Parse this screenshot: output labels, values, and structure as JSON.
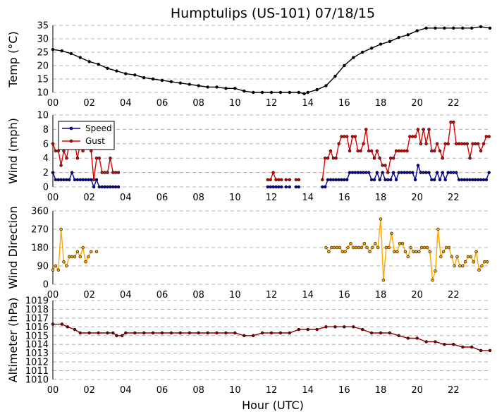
{
  "title": "Humptulips (US-101) 07/18/15",
  "xlabel": "Hour (UTC)",
  "x_ticks": [
    "00",
    "02",
    "04",
    "06",
    "08",
    "10",
    "12",
    "14",
    "16",
    "18",
    "20",
    "22"
  ],
  "colors": {
    "temp": "#000000",
    "speed": "#0000aa",
    "gust": "#dd0000",
    "direction": "#ffa500",
    "altimeter": "#8b0000",
    "marker": "#000000"
  },
  "chart_data": [
    {
      "type": "line",
      "name": "temperature",
      "ylabel": "Temp (°C)",
      "xlim": [
        0,
        24
      ],
      "ylim": [
        10,
        35
      ],
      "yticks": [
        10,
        15,
        20,
        25,
        30,
        35
      ],
      "series": [
        {
          "x": [
            0,
            0.5,
            1,
            1.5,
            2,
            2.5,
            3,
            3.5,
            4,
            4.5,
            5,
            5.5,
            6,
            6.5,
            7,
            7.5,
            8,
            8.5,
            9,
            9.5,
            10,
            10.5,
            11,
            11.5,
            12,
            12.5,
            13,
            13.5,
            13.8,
            14,
            14.5,
            15,
            15.5,
            16,
            16.5,
            17,
            17.5,
            18,
            18.5,
            19,
            19.5,
            20,
            20.5,
            21,
            21.5,
            22,
            22.5,
            23,
            23.5,
            24
          ],
          "y": [
            26,
            25.5,
            24.5,
            23,
            21.5,
            20.5,
            19,
            18,
            17,
            16.5,
            15.5,
            15,
            14.5,
            14,
            13.5,
            13,
            12.5,
            12,
            12,
            11.5,
            11.5,
            10.5,
            10,
            10,
            10,
            10,
            10,
            10,
            9.5,
            10,
            11,
            12.5,
            16,
            20,
            23,
            25,
            26.5,
            28,
            29,
            30.5,
            31.5,
            33,
            34,
            34,
            34,
            34,
            34,
            34,
            34.5,
            34
          ]
        }
      ]
    },
    {
      "type": "line",
      "name": "wind",
      "ylabel": "Wind (mph)",
      "xlim": [
        0,
        24
      ],
      "ylim": [
        0,
        10
      ],
      "yticks": [
        0,
        2,
        4,
        6,
        8,
        10
      ],
      "legend": "top-left",
      "series": [
        {
          "name": "Speed",
          "segments": [
            {
              "x": [
                0,
                0.15,
                0.3,
                0.45,
                0.6,
                0.75,
                0.9,
                1.05,
                1.2,
                1.35,
                1.5,
                1.65,
                1.8,
                1.95,
                2.1,
                2.25,
                2.4,
                2.55,
                2.7,
                2.85,
                3.0,
                3.15,
                3.3,
                3.45,
                3.6
              ],
              "y": [
                2,
                1,
                1,
                1,
                1,
                1,
                1,
                2,
                1,
                1,
                1,
                1,
                1,
                1,
                1,
                0,
                1,
                0,
                0,
                0,
                0,
                0,
                0,
                0,
                0
              ]
            },
            {
              "x": [
                11.8,
                11.95,
                12.1,
                12.25,
                12.4,
                12.55
              ],
              "y": [
                0,
                0,
                0,
                0,
                0,
                0
              ]
            },
            {
              "x": [
                12.8,
                13.0
              ],
              "y": [
                0,
                0
              ]
            },
            {
              "x": [
                13.35,
                13.5
              ],
              "y": [
                0,
                0
              ]
            },
            {
              "x": [
                14.8,
                14.95,
                15.1,
                15.25,
                15.4,
                15.55,
                15.7,
                15.85,
                16.0,
                16.15,
                16.3,
                16.45,
                16.6,
                16.75,
                16.9,
                17.05,
                17.2,
                17.35,
                17.5,
                17.65,
                17.8,
                17.95,
                18.1,
                18.25,
                18.4,
                18.55,
                18.7,
                18.85,
                19.0,
                19.15,
                19.3,
                19.45,
                19.6,
                19.75,
                19.9,
                20.05,
                20.2,
                20.35,
                20.5,
                20.65,
                20.8,
                20.95,
                21.1,
                21.25,
                21.4,
                21.55,
                21.7,
                21.85,
                22.0,
                22.15,
                22.3,
                22.45,
                22.6,
                22.75,
                22.9,
                23.05,
                23.2,
                23.35,
                23.5,
                23.65,
                23.8,
                23.95
              ],
              "y": [
                0,
                0,
                1,
                1,
                1,
                1,
                1,
                1,
                1,
                1,
                2,
                2,
                2,
                2,
                2,
                2,
                2,
                2,
                1,
                1,
                2,
                1,
                2,
                1,
                1,
                1,
                2,
                1,
                2,
                2,
                2,
                2,
                2,
                2,
                1,
                3,
                2,
                2,
                2,
                2,
                1,
                1,
                2,
                1,
                2,
                1,
                2,
                2,
                2,
                2,
                1,
                1,
                1,
                1,
                1,
                1,
                1,
                1,
                1,
                1,
                1,
                2
              ]
            }
          ]
        },
        {
          "name": "Gust",
          "segments": [
            {
              "x": [
                0,
                0.15,
                0.3,
                0.45,
                0.6,
                0.75,
                0.9,
                1.05,
                1.2,
                1.35,
                1.5,
                1.65,
                1.8,
                1.95,
                2.1,
                2.25,
                2.4,
                2.55,
                2.7,
                2.85,
                3.0,
                3.15,
                3.3,
                3.45,
                3.6
              ],
              "y": [
                6,
                5,
                5,
                3,
                5,
                4,
                6,
                6,
                6,
                4,
                6,
                5,
                6,
                6,
                5,
                1,
                4,
                4,
                2,
                2,
                2,
                4,
                2,
                2,
                2
              ]
            },
            {
              "x": [
                11.8,
                11.95,
                12.1,
                12.25,
                12.4,
                12.55
              ],
              "y": [
                1,
                1,
                2,
                1,
                1,
                1
              ]
            },
            {
              "x": [
                12.8,
                13.0
              ],
              "y": [
                1,
                1
              ]
            },
            {
              "x": [
                13.35,
                13.5
              ],
              "y": [
                1,
                1
              ]
            },
            {
              "x": [
                14.8,
                14.95,
                15.1,
                15.25,
                15.4,
                15.55,
                15.7,
                15.85,
                16.0,
                16.15,
                16.3,
                16.45,
                16.6,
                16.75,
                16.9,
                17.05,
                17.2,
                17.35,
                17.5,
                17.65,
                17.8,
                17.95,
                18.1,
                18.25,
                18.4,
                18.55,
                18.7,
                18.85,
                19.0,
                19.15,
                19.3,
                19.45,
                19.6,
                19.75,
                19.9,
                20.05,
                20.2,
                20.35,
                20.5,
                20.65,
                20.8,
                20.95,
                21.1,
                21.25,
                21.4,
                21.55,
                21.7,
                21.85,
                22.0,
                22.15,
                22.3,
                22.45,
                22.6,
                22.75,
                22.9,
                23.05,
                23.2,
                23.35,
                23.5,
                23.65,
                23.8,
                23.95
              ],
              "y": [
                1,
                4,
                4,
                5,
                4,
                4,
                6,
                7,
                7,
                7,
                5,
                7,
                7,
                5,
                5,
                6,
                8,
                5,
                5,
                4,
                5,
                4,
                3,
                3,
                2,
                4,
                4,
                5,
                5,
                5,
                5,
                5,
                7,
                7,
                7,
                8,
                6,
                8,
                6,
                8,
                5,
                5,
                6,
                5,
                4,
                6,
                6,
                9,
                9,
                6,
                6,
                6,
                6,
                6,
                4,
                6,
                6,
                6,
                5,
                6,
                7,
                7
              ]
            }
          ]
        }
      ]
    },
    {
      "type": "line",
      "name": "wind_direction",
      "ylabel": "Wind Direction",
      "xlim": [
        0,
        24
      ],
      "ylim": [
        0,
        360
      ],
      "yticks": [
        0,
        90,
        180,
        270,
        360
      ],
      "series": [
        {
          "segments": [
            {
              "x": [
                0,
                0.15,
                0.3,
                0.45,
                0.6,
                0.75,
                0.9,
                1.05,
                1.2,
                1.35,
                1.5,
                1.65,
                1.8,
                1.95,
                2.1
              ],
              "y": [
                70,
                90,
                70,
                270,
                110,
                90,
                135,
                135,
                135,
                160,
                135,
                180,
                110,
                135,
                160
              ]
            },
            {
              "x": [
                2.4
              ],
              "y": [
                160
              ]
            },
            {
              "x": [
                15.0,
                15.15,
                15.3,
                15.45,
                15.6,
                15.75,
                15.9,
                16.05,
                16.2,
                16.35,
                16.5,
                16.65,
                16.8,
                16.95,
                17.1,
                17.25,
                17.4,
                17.55,
                17.7,
                17.85,
                18.0,
                18.15,
                18.3,
                18.45,
                18.6,
                18.75,
                18.9,
                19.05,
                19.2,
                19.35,
                19.5,
                19.65,
                19.8,
                19.95,
                20.1,
                20.25,
                20.4,
                20.55,
                20.7,
                20.85,
                21.0,
                21.15,
                21.3,
                21.45,
                21.6,
                21.75,
                21.9,
                22.05,
                22.2,
                22.35,
                22.5,
                22.65,
                22.8,
                22.95,
                23.1,
                23.25,
                23.4,
                23.55,
                23.7,
                23.85
              ],
              "y": [
                180,
                160,
                180,
                180,
                180,
                180,
                160,
                160,
                180,
                200,
                180,
                180,
                180,
                180,
                200,
                180,
                160,
                180,
                200,
                180,
                320,
                20,
                180,
                180,
                250,
                160,
                160,
                200,
                200,
                160,
                135,
                180,
                160,
                160,
                160,
                180,
                180,
                180,
                160,
                20,
                65,
                270,
                135,
                160,
                180,
                180,
                135,
                90,
                135,
                90,
                90,
                110,
                135,
                135,
                110,
                160,
                70,
                90,
                110,
                110
              ]
            }
          ]
        }
      ]
    },
    {
      "type": "line",
      "name": "altimeter",
      "ylabel": "Altimeter (hPa)",
      "xlim": [
        0,
        24
      ],
      "ylim": [
        1010,
        1019
      ],
      "yticks": [
        1010,
        1011,
        1012,
        1013,
        1014,
        1015,
        1016,
        1017,
        1018,
        1019
      ],
      "series": [
        {
          "x": [
            0,
            0.5,
            0.8,
            1.2,
            1.5,
            2,
            2.5,
            3,
            3.3,
            3.5,
            3.8,
            4,
            4.5,
            5,
            5.5,
            6,
            6.5,
            7,
            7.5,
            8,
            8.5,
            9,
            9.5,
            10,
            10.5,
            11,
            11.5,
            12,
            12.5,
            13,
            13.5,
            14,
            14.5,
            15,
            15.5,
            16,
            16.5,
            17,
            17.5,
            18,
            18.5,
            19,
            19.5,
            20,
            20.5,
            21,
            21.5,
            22,
            22.5,
            23,
            23.5,
            24
          ],
          "y": [
            1016.3,
            1016.3,
            1016,
            1015.7,
            1015.3,
            1015.3,
            1015.3,
            1015.3,
            1015.3,
            1015,
            1015,
            1015.3,
            1015.3,
            1015.3,
            1015.3,
            1015.3,
            1015.3,
            1015.3,
            1015.3,
            1015.3,
            1015.3,
            1015.3,
            1015.3,
            1015.3,
            1015,
            1015,
            1015.3,
            1015.3,
            1015.3,
            1015.3,
            1015.7,
            1015.7,
            1015.7,
            1016,
            1016,
            1016,
            1016,
            1015.7,
            1015.3,
            1015.3,
            1015.3,
            1015,
            1014.7,
            1014.7,
            1014.3,
            1014.3,
            1014,
            1014,
            1013.7,
            1013.7,
            1013.3,
            1013.3
          ]
        }
      ]
    }
  ]
}
